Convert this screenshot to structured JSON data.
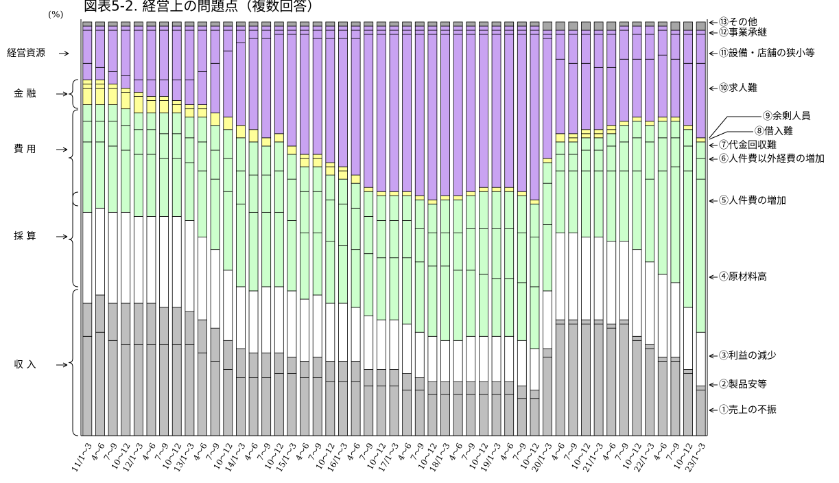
{
  "chart_data": {
    "type": "stacked_bar",
    "title": "図表5-2. 経営上の問題点（複数回答）",
    "y_label": "(%)",
    "ylim": [
      0,
      100
    ],
    "groups": [
      "経営資源",
      "金 融",
      "費 用",
      "採 算",
      "収 入"
    ],
    "categories": [
      "11/1～3",
      "4～6",
      "7～9",
      "10～12",
      "12/1～3",
      "4～6",
      "7～9",
      "10～12",
      "13/1～3",
      "4～6",
      "7～9",
      "10～12",
      "14/1～3",
      "4～6",
      "7～9",
      "10～12",
      "15/1～3",
      "4～6",
      "7～9",
      "10～12",
      "16/1～3",
      "4～6",
      "7～9",
      "10～12",
      "17/1～3",
      "4～6",
      "7～9",
      "10～12",
      "18/1～3",
      "4～6",
      "7～9",
      "10～12",
      "19/1～3",
      "4～6",
      "7～9",
      "10～12",
      "20/1～3",
      "4～6",
      "7～9",
      "10～12",
      "21/1～3",
      "4～6",
      "7～9",
      "10～12",
      "22/1～3",
      "4～6",
      "7～9",
      "10～12",
      "23/1～3"
    ],
    "series": [
      {
        "name": "①売上の不振",
        "color": "#bfbfbf",
        "values": [
          24,
          25,
          23,
          22,
          22,
          22,
          22,
          22,
          22,
          20,
          18,
          16,
          14,
          14,
          14,
          15,
          15,
          14,
          14,
          13,
          13,
          13,
          12,
          12,
          12,
          11,
          11,
          10,
          10,
          10,
          10,
          10,
          10,
          10,
          9,
          9,
          19,
          27,
          27,
          27,
          27,
          26,
          27,
          23,
          21,
          18,
          18,
          15,
          11
        ]
      },
      {
        "name": "②製品安等",
        "color": "#bfbfbf",
        "values": [
          8,
          9,
          9,
          10,
          10,
          10,
          9,
          9,
          8,
          8,
          8,
          7,
          7,
          6,
          6,
          5,
          4,
          4,
          5,
          5,
          5,
          5,
          4,
          4,
          4,
          4,
          3,
          3,
          3,
          3,
          3,
          3,
          3,
          3,
          3,
          2,
          2,
          1,
          1,
          1,
          1,
          1,
          1,
          1,
          1,
          1,
          1,
          1,
          1
        ]
      },
      {
        "name": "③利益の減少",
        "color": "#ffffff",
        "values": [
          22,
          21,
          22,
          22,
          21,
          21,
          22,
          22,
          22,
          20,
          19,
          17,
          15,
          15,
          16,
          16,
          16,
          15,
          15,
          14,
          14,
          13,
          13,
          12,
          12,
          12,
          11,
          11,
          10,
          10,
          11,
          11,
          11,
          11,
          11,
          10,
          14,
          21,
          21,
          20,
          20,
          20,
          19,
          21,
          20,
          20,
          18,
          15,
          13
        ]
      },
      {
        "name": "④原材料高",
        "color": "#ccffcc",
        "values": [
          17,
          16,
          16,
          15,
          15,
          15,
          14,
          14,
          14,
          16,
          17,
          19,
          20,
          19,
          18,
          18,
          17,
          16,
          15,
          15,
          14,
          14,
          15,
          15,
          15,
          16,
          17,
          17,
          18,
          17,
          16,
          15,
          14,
          14,
          14,
          15,
          16,
          15,
          15,
          16,
          16,
          17,
          17,
          19,
          20,
          25,
          28,
          33,
          37
        ]
      },
      {
        "name": "⑤人件費の増加",
        "color": "#ccffcc",
        "values": [
          5,
          5,
          6,
          6,
          6,
          6,
          6,
          6,
          6,
          7,
          7,
          8,
          8,
          9,
          9,
          10,
          10,
          10,
          10,
          10,
          10,
          10,
          9,
          9,
          9,
          9,
          8,
          8,
          8,
          9,
          10,
          11,
          12,
          12,
          12,
          12,
          10,
          4,
          4,
          5,
          5,
          6,
          7,
          8,
          9,
          8,
          7,
          6,
          5
        ]
      },
      {
        "name": "⑥人件費以外経費の増加",
        "color": "#ccffcc",
        "values": [
          4,
          4,
          4,
          4,
          4,
          4,
          5,
          5,
          5,
          6,
          6,
          7,
          8,
          8,
          7,
          7,
          6,
          6,
          6,
          6,
          6,
          6,
          6,
          6,
          6,
          6,
          7,
          7,
          8,
          8,
          8,
          9,
          9,
          9,
          9,
          8,
          5,
          3,
          3,
          3,
          3,
          3,
          4,
          4,
          4,
          4,
          4,
          4,
          4
        ]
      },
      {
        "name": "⑦代金回収難",
        "color": "#ffff99",
        "values": [
          4,
          4,
          4,
          4,
          4,
          3,
          3,
          2,
          2,
          2,
          3,
          3,
          3,
          3,
          2,
          2,
          2,
          2,
          2,
          2,
          2,
          2,
          1,
          1,
          1,
          1,
          1,
          1,
          1,
          1,
          1,
          1,
          1,
          1,
          1,
          1,
          1,
          2,
          1,
          1,
          1,
          1,
          1,
          1,
          1,
          1,
          1,
          1,
          1
        ]
      },
      {
        "name": "⑧借入難",
        "color": "#ffff99",
        "values": [
          1,
          1,
          1,
          1,
          1,
          1,
          1,
          1,
          1,
          1,
          0,
          0,
          0,
          0,
          0,
          0,
          0,
          1,
          1,
          1,
          1,
          0,
          0,
          0,
          0,
          0,
          0,
          0,
          0,
          0,
          0,
          0,
          0,
          0,
          0,
          0,
          0,
          0,
          1,
          1,
          1,
          1,
          0,
          0,
          0,
          0,
          0,
          0,
          0
        ]
      },
      {
        "name": "⑨余剰人員",
        "color": "#ffff99",
        "values": [
          1,
          1,
          0,
          0,
          0,
          0,
          0,
          0,
          0,
          0,
          0,
          0,
          0,
          0,
          0,
          0,
          0,
          0,
          0,
          0,
          0,
          0,
          0,
          0,
          0,
          0,
          0,
          0,
          0,
          0,
          0,
          0,
          0,
          0,
          0,
          0,
          0,
          0,
          0,
          0,
          0,
          0,
          0,
          0,
          0,
          0,
          0,
          0,
          0
        ]
      },
      {
        "name": "⑩求人難",
        "color": "#c9a3f2",
        "values": [
          4,
          3,
          3,
          3,
          3,
          4,
          4,
          5,
          6,
          8,
          12,
          16,
          20,
          22,
          24,
          24,
          27,
          29,
          28,
          30,
          31,
          33,
          37,
          38,
          38,
          38,
          39,
          40,
          39,
          39,
          38,
          37,
          37,
          37,
          38,
          40,
          29,
          18,
          17,
          16,
          15,
          14,
          15,
          14,
          15,
          15,
          14,
          15,
          18
        ]
      },
      {
        "name": "⑪設備・店舗の狭小等",
        "color": "#c9a3f2",
        "values": [
          8,
          9,
          10,
          11,
          12,
          12,
          12,
          12,
          12,
          10,
          8,
          5,
          3,
          2,
          2,
          1,
          1,
          1,
          2,
          2,
          2,
          2,
          1,
          1,
          1,
          1,
          1,
          1,
          1,
          1,
          1,
          1,
          1,
          1,
          1,
          1,
          1,
          6,
          7,
          7,
          8,
          8,
          7,
          6,
          6,
          6,
          6,
          7,
          7
        ]
      },
      {
        "name": "⑫事業承継",
        "color": "#c9a3f2",
        "values": [
          1,
          1,
          1,
          1,
          1,
          1,
          1,
          1,
          1,
          1,
          1,
          1,
          1,
          1,
          1,
          1,
          1,
          1,
          1,
          1,
          1,
          1,
          1,
          1,
          1,
          1,
          1,
          1,
          1,
          1,
          1,
          1,
          1,
          1,
          1,
          1,
          1,
          1,
          1,
          1,
          1,
          1,
          1,
          2,
          2,
          1,
          1,
          1,
          1
        ]
      },
      {
        "name": "⑬その他",
        "color": "#a6a6a6",
        "values": [
          1,
          1,
          1,
          1,
          1,
          1,
          1,
          1,
          1,
          1,
          1,
          1,
          1,
          1,
          1,
          1,
          1,
          1,
          1,
          1,
          1,
          1,
          1,
          1,
          1,
          1,
          1,
          1,
          1,
          1,
          1,
          1,
          1,
          1,
          1,
          1,
          2,
          2,
          2,
          2,
          2,
          2,
          1,
          1,
          1,
          1,
          2,
          2,
          2
        ]
      }
    ]
  }
}
